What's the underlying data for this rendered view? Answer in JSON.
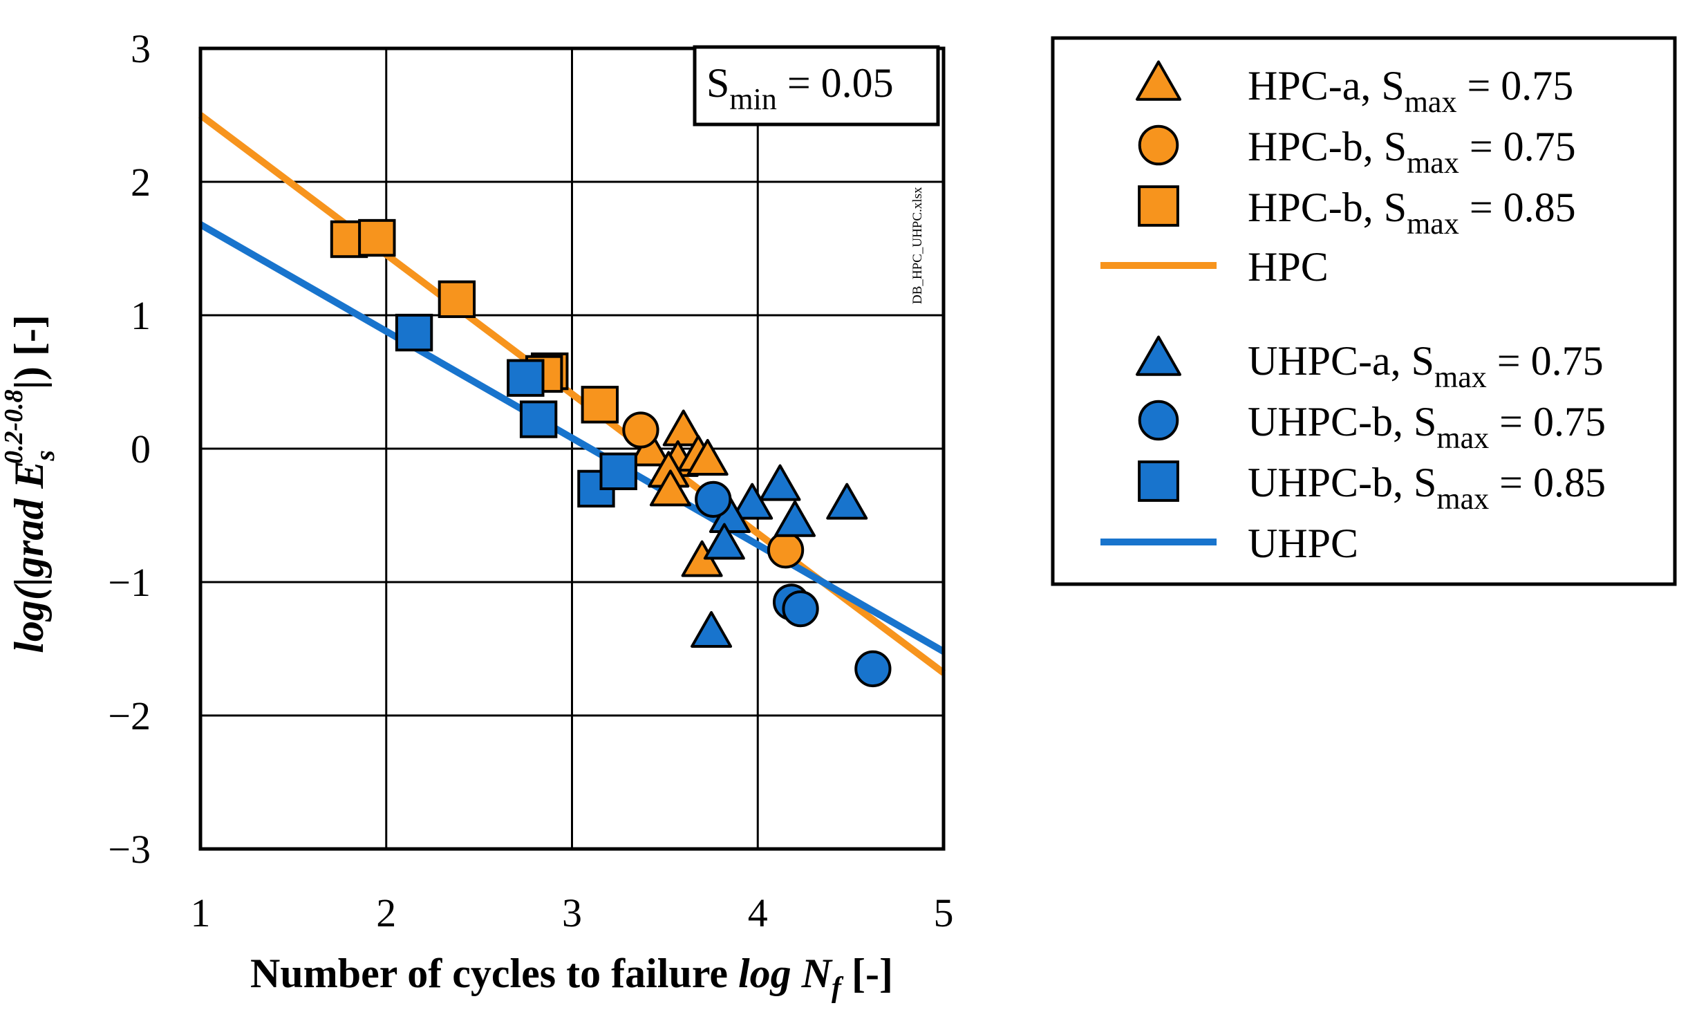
{
  "colors": {
    "hpc": "#F7941D",
    "uhpc": "#1874CD",
    "axis": "#000000"
  },
  "annotations": {
    "smin_label": "S",
    "smin_sub": "min",
    "smin_value": " = 0.05",
    "file_tag": "DB_HPC_UHPC.xlsx"
  },
  "axes": {
    "xlabel_main": "Number of cycles to failure ",
    "xlabel_var": "log N",
    "xlabel_sub": "f",
    "xlabel_unit": " [-]",
    "ylabel_a": "log(|",
    "ylabel_b": "grad E",
    "ylabel_sub": "s",
    "ylabel_sup": "0.2-0.8",
    "ylabel_c": "|) [-]"
  },
  "chart_data": {
    "type": "scatter",
    "xlim": [
      1,
      5
    ],
    "ylim": [
      -3,
      3
    ],
    "xticks": [
      "1",
      "2",
      "3",
      "4",
      "5"
    ],
    "yticks": [
      "3",
      "2",
      "1",
      "0",
      "−1",
      "−2",
      "−3"
    ],
    "grid": true,
    "legend_position": "right",
    "series": [
      {
        "name": "HPC-a, Smax = 0.75",
        "label_main": "HPC-a, S",
        "label_sub": "max",
        "label_tail": " = 0.75",
        "marker": "triangle",
        "color": "hpc",
        "points": [
          [
            3.6,
            0.13
          ],
          [
            3.42,
            -0.02
          ],
          [
            3.57,
            -0.1
          ],
          [
            3.52,
            -0.18
          ],
          [
            3.68,
            -0.06
          ],
          [
            3.73,
            -0.09
          ],
          [
            3.53,
            -0.32
          ],
          [
            3.7,
            -0.85
          ]
        ]
      },
      {
        "name": "HPC-b, Smax = 0.75",
        "label_main": "HPC-b, S",
        "label_sub": "max",
        "label_tail": " = 0.75",
        "marker": "circle",
        "color": "hpc",
        "points": [
          [
            3.37,
            0.14
          ],
          [
            4.15,
            -0.76
          ]
        ]
      },
      {
        "name": "HPC-b, Smax = 0.85",
        "label_main": "HPC-b, S",
        "label_sub": "max",
        "label_tail": " = 0.85",
        "marker": "square",
        "color": "hpc",
        "points": [
          [
            1.8,
            1.57
          ],
          [
            1.95,
            1.58
          ],
          [
            2.38,
            1.12
          ],
          [
            2.88,
            0.58
          ],
          [
            2.85,
            0.56
          ],
          [
            3.15,
            0.33
          ]
        ]
      },
      {
        "name": "HPC",
        "label_main": "HPC",
        "marker": "line",
        "color": "hpc",
        "points": [
          [
            1,
            2.5
          ],
          [
            5,
            -1.68
          ]
        ]
      },
      {
        "name": "UHPC-a, Smax = 0.75",
        "label_main": "UHPC-a, S",
        "label_sub": "max",
        "label_tail": " = 0.75",
        "marker": "triangle",
        "color": "uhpc",
        "points": [
          [
            4.12,
            -0.28
          ],
          [
            4.48,
            -0.42
          ],
          [
            3.97,
            -0.42
          ],
          [
            3.85,
            -0.52
          ],
          [
            4.2,
            -0.55
          ],
          [
            3.82,
            -0.72
          ],
          [
            3.75,
            -1.38
          ]
        ]
      },
      {
        "name": "UHPC-b, Smax = 0.75",
        "label_main": "UHPC-b, S",
        "label_sub": "max",
        "label_tail": " = 0.75",
        "marker": "circle",
        "color": "uhpc",
        "points": [
          [
            3.76,
            -0.38
          ],
          [
            4.18,
            -1.15
          ],
          [
            4.23,
            -1.2
          ],
          [
            4.62,
            -1.65
          ]
        ]
      },
      {
        "name": "UHPC-b, Smax = 0.85",
        "label_main": "UHPC-b, S",
        "label_sub": "max",
        "label_tail": " = 0.85",
        "marker": "square",
        "color": "uhpc",
        "points": [
          [
            2.15,
            0.87
          ],
          [
            2.75,
            0.53
          ],
          [
            2.82,
            0.22
          ],
          [
            3.13,
            -0.3
          ],
          [
            3.25,
            -0.17
          ]
        ]
      },
      {
        "name": "UHPC",
        "label_main": "UHPC",
        "marker": "line",
        "color": "uhpc",
        "points": [
          [
            1,
            1.68
          ],
          [
            5,
            -1.52
          ]
        ]
      }
    ]
  }
}
